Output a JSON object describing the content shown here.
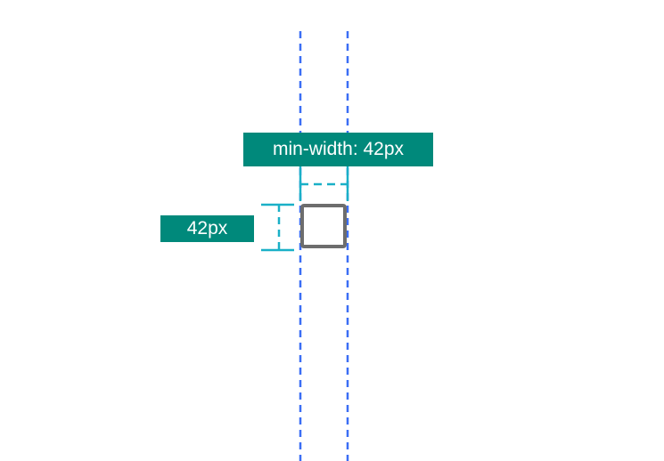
{
  "labels": {
    "min_width": "min-width: 42px",
    "size": "42px"
  },
  "colors": {
    "guide_line": "#3b6ef5",
    "dimension_line": "#1ab0c7",
    "label_background": "#00897b",
    "label_text": "#ffffff",
    "square_border": "#6d6d6d"
  }
}
